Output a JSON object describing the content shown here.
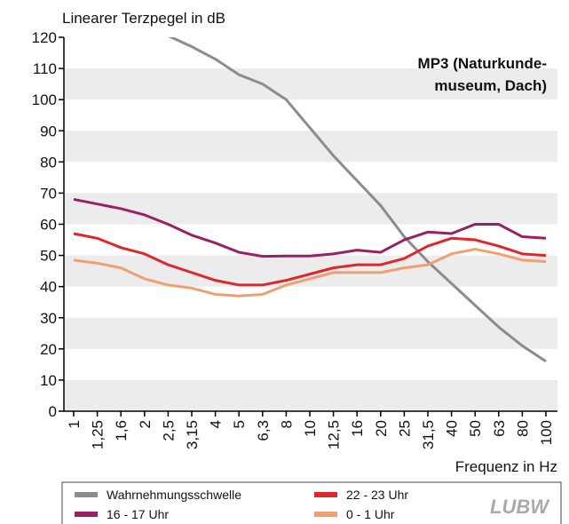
{
  "chart_data": {
    "type": "line",
    "title": "Linearer Terzpegel in dB",
    "annotation": [
      "MP3 (Naturkunde-",
      "museum, Dach)"
    ],
    "x_label": "Frequenz in Hz",
    "logo": "LUBW",
    "categories": [
      "1",
      "1,25",
      "1,6",
      "2",
      "2,5",
      "3,15",
      "4",
      "5",
      "6,3",
      "8",
      "10",
      "12,5",
      "16",
      "20",
      "25",
      "31,5",
      "40",
      "50",
      "63",
      "80",
      "100"
    ],
    "series": [
      {
        "name": "Wahrnehmungsschwelle",
        "color": "#8c8c8c",
        "values": [
          null,
          null,
          null,
          124,
          120.5,
          117,
          113,
          108,
          105,
          100,
          91,
          82,
          74,
          66,
          56,
          48,
          41,
          34,
          27,
          21,
          16
        ]
      },
      {
        "name": "16 - 17 Uhr",
        "color": "#9b2063",
        "values": [
          68,
          66.5,
          65,
          63,
          60,
          56.5,
          54,
          51,
          49.7,
          49.8,
          49.8,
          50.5,
          51.7,
          51,
          55,
          57.5,
          57,
          60,
          60,
          56,
          55.5
        ]
      },
      {
        "name": "22 - 23 Uhr",
        "color": "#e0262a",
        "values": [
          57,
          55.5,
          52.5,
          50.5,
          47,
          44.5,
          42,
          40.5,
          40.5,
          42,
          44,
          46,
          47,
          47,
          49,
          53,
          55.5,
          55,
          53,
          50.5,
          50
        ]
      },
      {
        "name": "0 - 1 Uhr",
        "color": "#f0a070",
        "values": [
          48.5,
          47.5,
          46,
          42.5,
          40.5,
          39.5,
          37.5,
          37,
          37.5,
          40.5,
          42.5,
          44.5,
          44.5,
          44.5,
          46,
          47,
          50.5,
          52,
          50.5,
          48.5,
          48
        ]
      }
    ],
    "ylim": [
      0,
      120
    ],
    "yticks": [
      0,
      10,
      20,
      30,
      40,
      50,
      60,
      70,
      80,
      90,
      100,
      110,
      120
    ],
    "grid": "bands"
  }
}
